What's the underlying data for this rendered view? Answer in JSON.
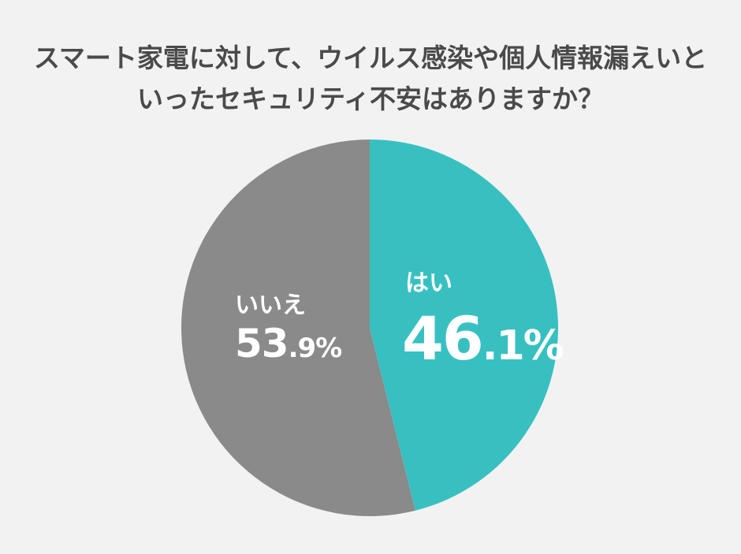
{
  "title": {
    "line1": "スマート家電に対して、ウイルス感染や個人情報漏えいと",
    "line2": "いったセキュリティ不安はありますか？"
  },
  "colors": {
    "background": "#f2f2f2",
    "yes": "#38c0c1",
    "no": "#8a8a8a",
    "title_text": "#4a4a4a",
    "label_text": "#ffffff"
  },
  "slices": {
    "yes": {
      "label": "はい",
      "int": "46",
      "dec": ".1%",
      "value": 46.1
    },
    "no": {
      "label": "いいえ",
      "int": "53",
      "dec": ".9%",
      "value": 53.9
    }
  },
  "chart_data": {
    "type": "pie",
    "title": "スマート家電に対して、ウイルス感染や個人情報漏えいといったセキュリティ不安はありますか？",
    "categories": [
      "はい",
      "いいえ"
    ],
    "values": [
      46.1,
      53.9
    ],
    "unit": "%",
    "colors": [
      "#38c0c1",
      "#8a8a8a"
    ],
    "start_angle": "12 o'clock, clockwise",
    "legend": "none (labels inside slices)"
  }
}
